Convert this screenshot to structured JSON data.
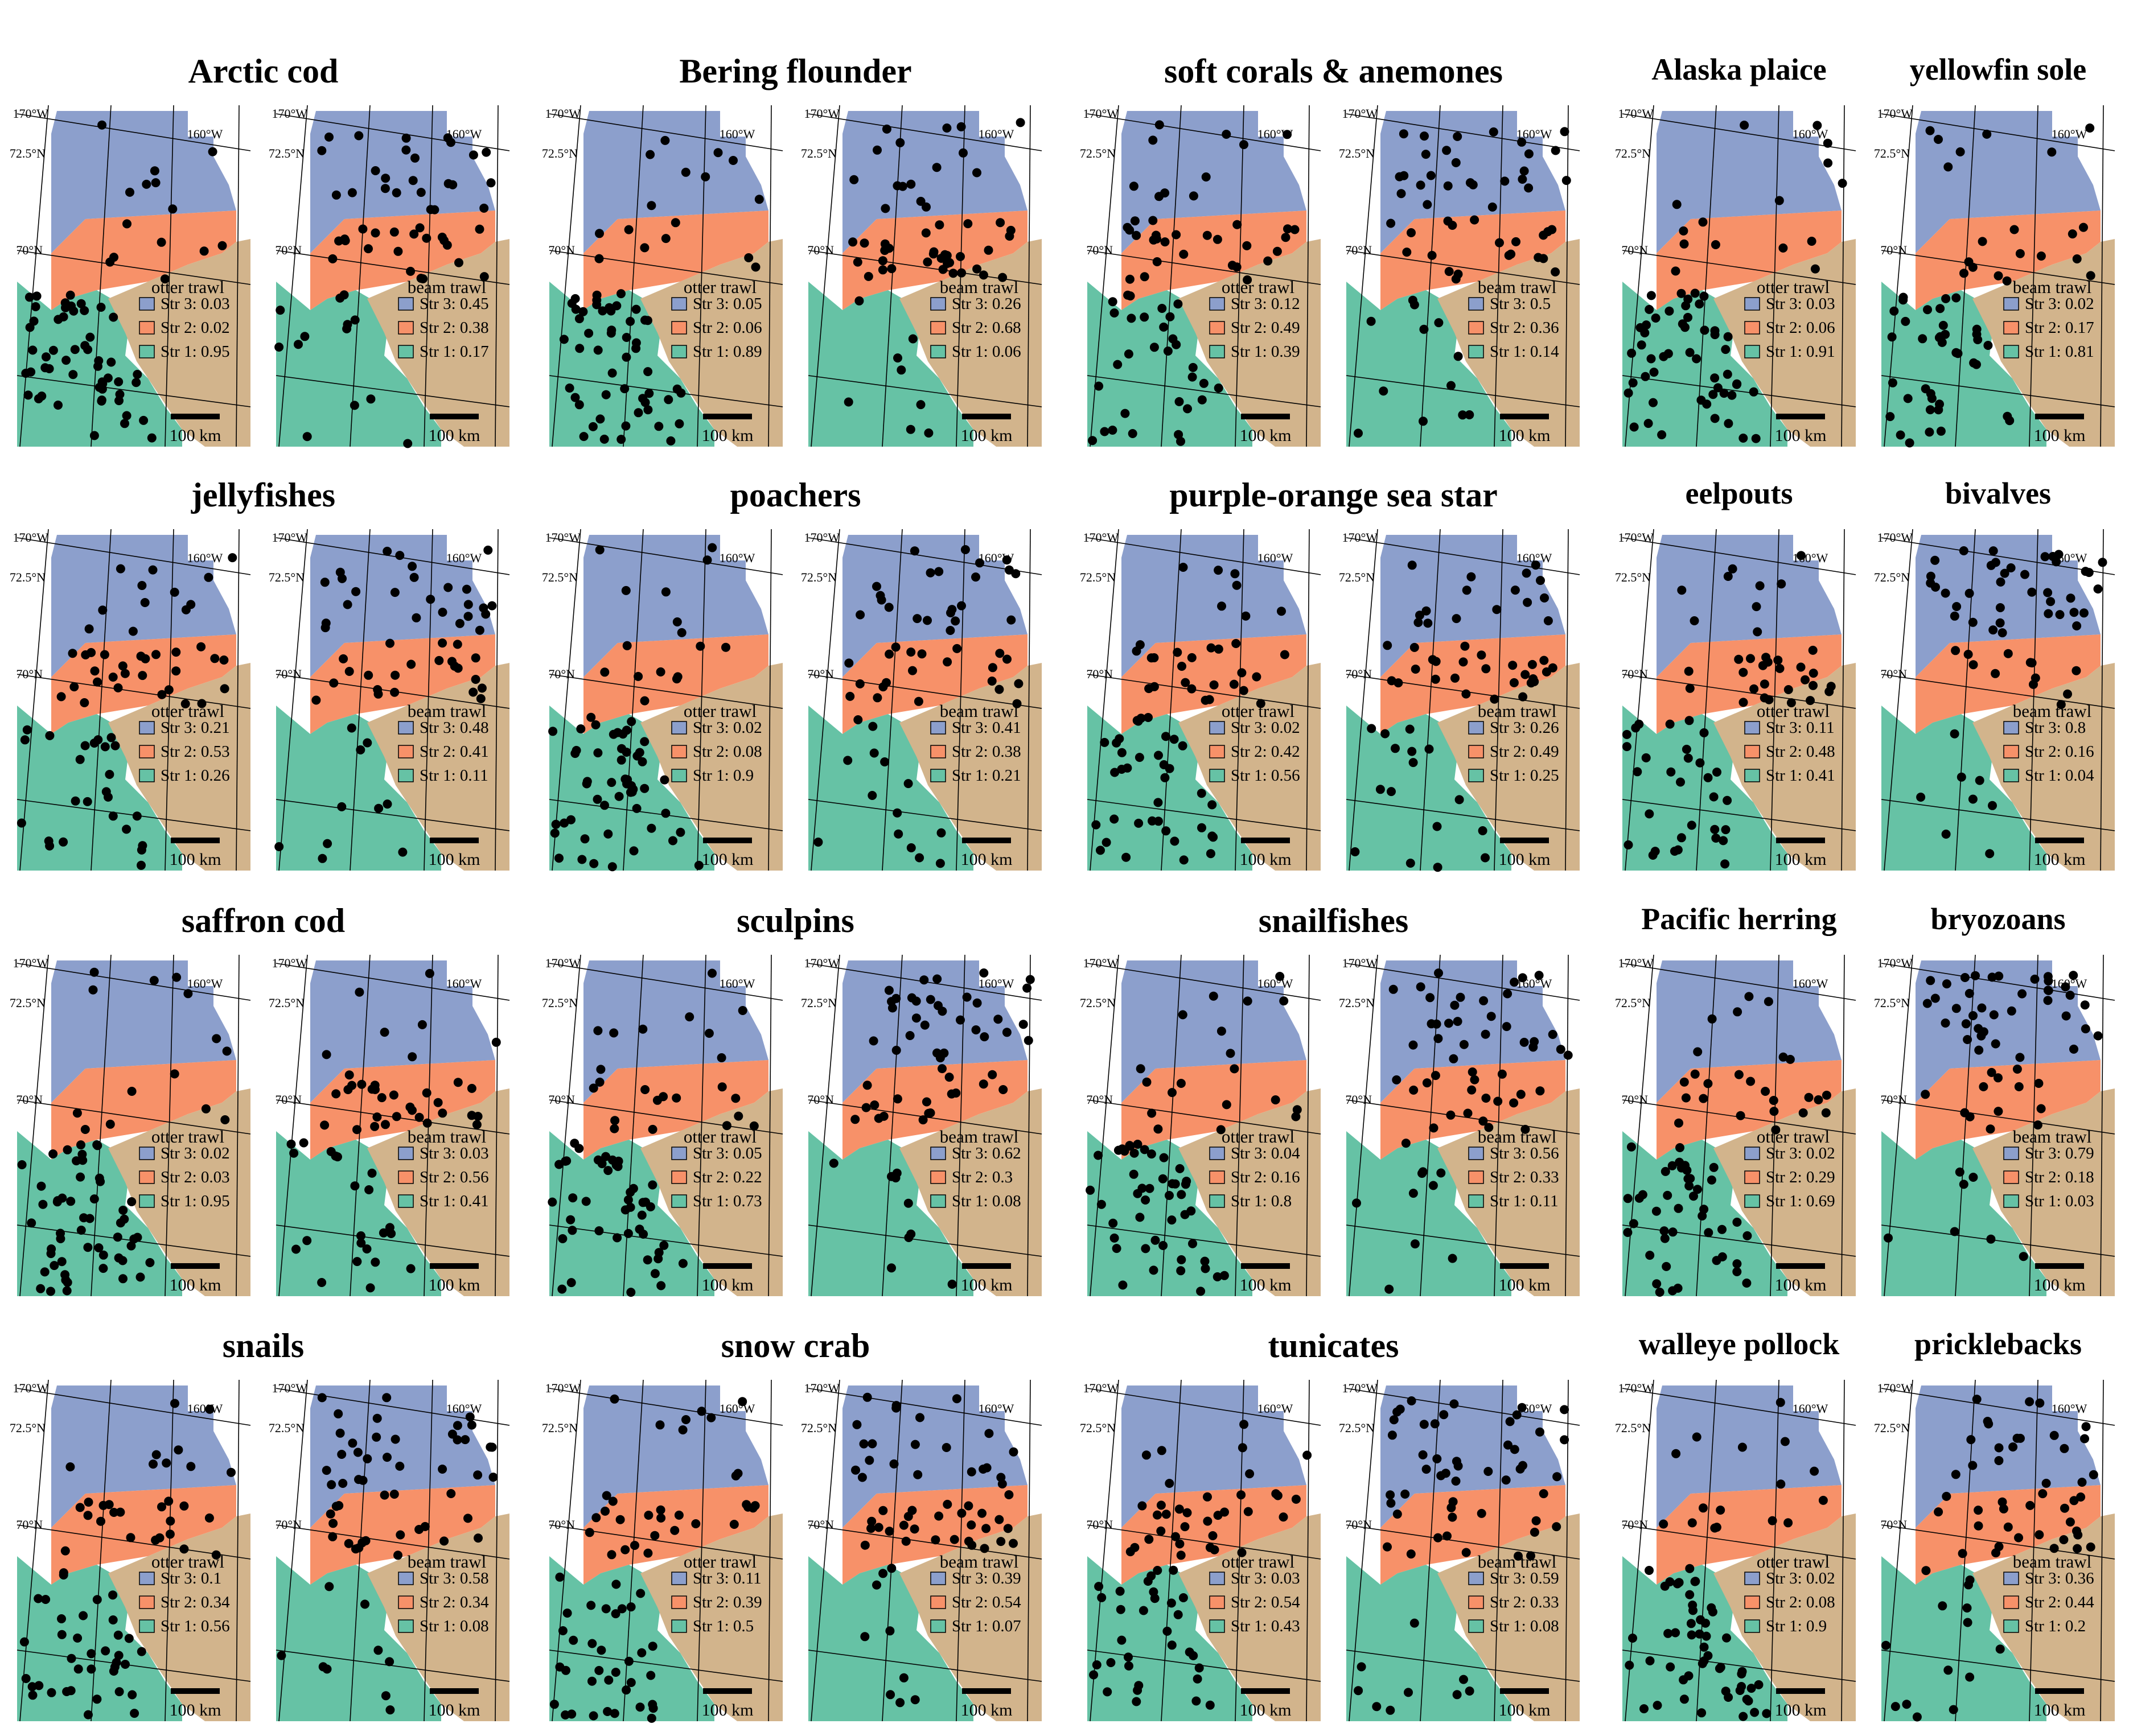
{
  "colors": {
    "stratum_3": "#8c9fcc",
    "stratum_2": "#f79169",
    "stratum_1": "#66c2a5",
    "land": "#d2b48c",
    "station": "#000000",
    "background": "#ffffff"
  },
  "map_labels": {
    "lon_170": "170°W",
    "lon_160": "160°W",
    "lat_725": "72.5°N",
    "lat_70": "70°N",
    "scale": "100 km"
  },
  "gear_names": {
    "otter": "otter trawl",
    "beam": "beam trawl"
  },
  "stratum_labels": [
    "Str 3: ",
    "Str 2: ",
    "Str 1: "
  ],
  "panels": [
    {
      "species": "Arctic cod",
      "otter": {
        "str3": 0.03,
        "str2": 0.02,
        "str1": 0.95
      },
      "beam": {
        "str3": 0.45,
        "str2": 0.38,
        "str1": 0.17
      }
    },
    {
      "species": "Bering flounder",
      "otter": {
        "str3": 0.05,
        "str2": 0.06,
        "str1": 0.89
      },
      "beam": {
        "str3": 0.26,
        "str2": 0.68,
        "str1": 0.06
      }
    },
    {
      "species": "soft corals & anemones",
      "otter": {
        "str3": 0.12,
        "str2": 0.49,
        "str1": 0.39
      },
      "beam": {
        "str3": 0.5,
        "str2": 0.36,
        "str1": 0.14
      }
    },
    {
      "species_otter": "Alaska plaice",
      "species_beam": "yellowfin sole",
      "otter": {
        "str3": 0.03,
        "str2": 0.06,
        "str1": 0.91
      },
      "beam": {
        "str3": 0.02,
        "str2": 0.17,
        "str1": 0.81
      }
    },
    {
      "species": "jellyfishes",
      "otter": {
        "str3": 0.21,
        "str2": 0.53,
        "str1": 0.26
      },
      "beam": {
        "str3": 0.48,
        "str2": 0.41,
        "str1": 0.11
      }
    },
    {
      "species": "poachers",
      "otter": {
        "str3": 0.02,
        "str2": 0.08,
        "str1": 0.9
      },
      "beam": {
        "str3": 0.41,
        "str2": 0.38,
        "str1": 0.21
      }
    },
    {
      "species": "purple-orange sea star",
      "otter": {
        "str3": 0.02,
        "str2": 0.42,
        "str1": 0.56
      },
      "beam": {
        "str3": 0.26,
        "str2": 0.49,
        "str1": 0.25
      }
    },
    {
      "species_otter": "eelpouts",
      "species_beam": "bivalves",
      "otter": {
        "str3": 0.11,
        "str2": 0.48,
        "str1": 0.41
      },
      "beam": {
        "str3": 0.8,
        "str2": 0.16,
        "str1": 0.04
      }
    },
    {
      "species": "saffron cod",
      "otter": {
        "str3": 0.02,
        "str2": 0.03,
        "str1": 0.95
      },
      "beam": {
        "str3": 0.03,
        "str2": 0.56,
        "str1": 0.41
      }
    },
    {
      "species": "sculpins",
      "otter": {
        "str3": 0.05,
        "str2": 0.22,
        "str1": 0.73
      },
      "beam": {
        "str3": 0.62,
        "str2": 0.3,
        "str1": 0.08
      }
    },
    {
      "species": "snailfishes",
      "otter": {
        "str3": 0.04,
        "str2": 0.16,
        "str1": 0.8
      },
      "beam": {
        "str3": 0.56,
        "str2": 0.33,
        "str1": 0.11
      }
    },
    {
      "species_otter": "Pacific herring",
      "species_beam": "bryozoans",
      "otter": {
        "str3": 0.02,
        "str2": 0.29,
        "str1": 0.69
      },
      "beam": {
        "str3": 0.79,
        "str2": 0.18,
        "str1": 0.03
      }
    },
    {
      "species": "snails",
      "otter": {
        "str3": 0.1,
        "str2": 0.34,
        "str1": 0.56
      },
      "beam": {
        "str3": 0.58,
        "str2": 0.34,
        "str1": 0.08
      }
    },
    {
      "species": "snow crab",
      "otter": {
        "str3": 0.11,
        "str2": 0.39,
        "str1": 0.5
      },
      "beam": {
        "str3": 0.39,
        "str2": 0.54,
        "str1": 0.07
      }
    },
    {
      "species": "tunicates",
      "otter": {
        "str3": 0.03,
        "str2": 0.54,
        "str1": 0.43
      },
      "beam": {
        "str3": 0.59,
        "str2": 0.33,
        "str1": 0.08
      }
    },
    {
      "species_otter": "walleye pollock",
      "species_beam": "pricklebacks",
      "otter": {
        "str3": 0.02,
        "str2": 0.08,
        "str1": 0.9
      },
      "beam": {
        "str3": 0.36,
        "str2": 0.44,
        "str1": 0.2
      }
    }
  ]
}
